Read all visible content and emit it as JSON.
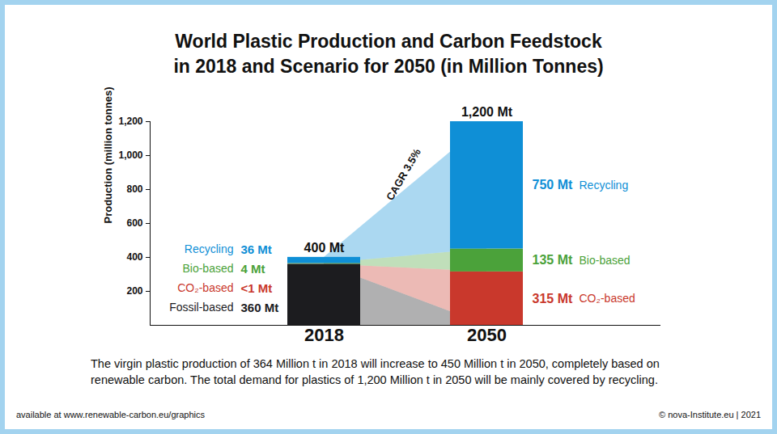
{
  "chart_data": {
    "type": "bar",
    "title": [
      "World Plastic Production and Carbon Feedstock",
      "in 2018 and Scenario for 2050 (in Million Tonnes)"
    ],
    "ylabel": "Production (million tonnes)",
    "categories": [
      "2018",
      "2050"
    ],
    "series": [
      {
        "name": "Fossil-based",
        "color": "#1c1c1f",
        "values": [
          360,
          0
        ],
        "value_labels": [
          "360 Mt",
          null
        ]
      },
      {
        "name": "CO₂-based",
        "color": "#c9382c",
        "values": [
          0.5,
          315
        ],
        "value_labels": [
          "<1 Mt",
          "315 Mt"
        ]
      },
      {
        "name": "Bio-based",
        "color": "#4ba23a",
        "values": [
          4,
          135
        ],
        "value_labels": [
          "4 Mt",
          "135 Mt"
        ]
      },
      {
        "name": "Recycling",
        "color": "#0f8fd6",
        "values": [
          36,
          750
        ],
        "value_labels": [
          "36 Mt",
          "750 Mt"
        ]
      }
    ],
    "totals": {
      "values": [
        400,
        1200
      ],
      "value_labels": [
        "400 Mt",
        "1,200 Mt"
      ]
    },
    "annotations": [
      {
        "text": "CAGR 3.5%"
      }
    ],
    "stacked": true,
    "data_labels": true,
    "grid": false,
    "ylim": [
      0,
      1200
    ],
    "yticks": [
      200,
      400,
      600,
      800,
      {
        "value": 1000,
        "label": "1,000"
      },
      {
        "value": 1200,
        "label": "1,200"
      }
    ],
    "caption": "The virgin plastic production of 364 Million t in 2018 will increase to 450 Million t in 2050, completely based on renewable carbon. The total demand for plastics of 1,200 Million t in 2050 will be mainly covered by recycling.",
    "source": "available at www.renewable-carbon.eu/graphics",
    "credit": "© nova-Institute.eu | 2021"
  }
}
